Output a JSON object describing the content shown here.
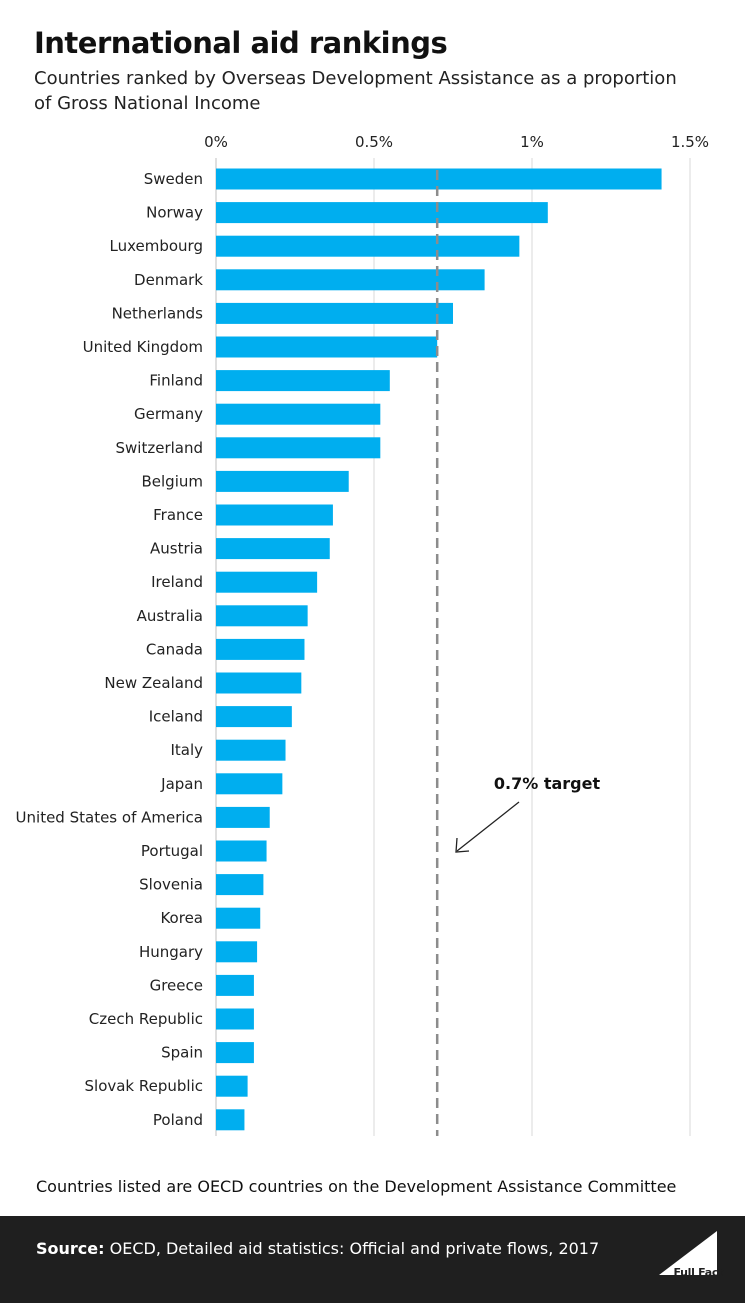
{
  "header": {
    "title": "International aid rankings",
    "subtitle": "Countries ranked by Overseas Development Assistance as a proportion of Gross National Income"
  },
  "chart_data": {
    "type": "bar",
    "orientation": "horizontal",
    "title": "International aid rankings",
    "xlabel": "",
    "ylabel": "",
    "xlim": [
      0,
      1.5
    ],
    "x_ticks": [
      0,
      0.5,
      1,
      1.5
    ],
    "x_tick_labels": [
      "0%",
      "0.5%",
      "1%",
      "1.5%"
    ],
    "grid": "vertical",
    "categories": [
      "Sweden",
      "Norway",
      "Luxembourg",
      "Denmark",
      "Netherlands",
      "United Kingdom",
      "Finland",
      "Germany",
      "Switzerland",
      "Belgium",
      "France",
      "Austria",
      "Ireland",
      "Australia",
      "Canada",
      "New Zealand",
      "Iceland",
      "Italy",
      "Japan",
      "United States of America",
      "Portugal",
      "Slovenia",
      "Korea",
      "Hungary",
      "Greece",
      "Czech Republic",
      "Spain",
      "Slovak Republic",
      "Poland"
    ],
    "values": [
      1.41,
      1.05,
      0.96,
      0.85,
      0.75,
      0.7,
      0.55,
      0.52,
      0.52,
      0.42,
      0.37,
      0.36,
      0.32,
      0.29,
      0.28,
      0.27,
      0.24,
      0.22,
      0.21,
      0.17,
      0.16,
      0.15,
      0.14,
      0.13,
      0.12,
      0.12,
      0.12,
      0.1,
      0.09
    ],
    "bar_color": "#00aeef",
    "target_line": {
      "value": 0.7,
      "label": "0.7% target",
      "color": "#8c8c8c"
    }
  },
  "note": "Countries listed are OECD countries on the Development Assistance Committee",
  "footer": {
    "source_label": "Source:",
    "source_text": " OECD, Detailed aid statistics: Official and private flows, 2017",
    "logo_text": "Full Fact"
  }
}
